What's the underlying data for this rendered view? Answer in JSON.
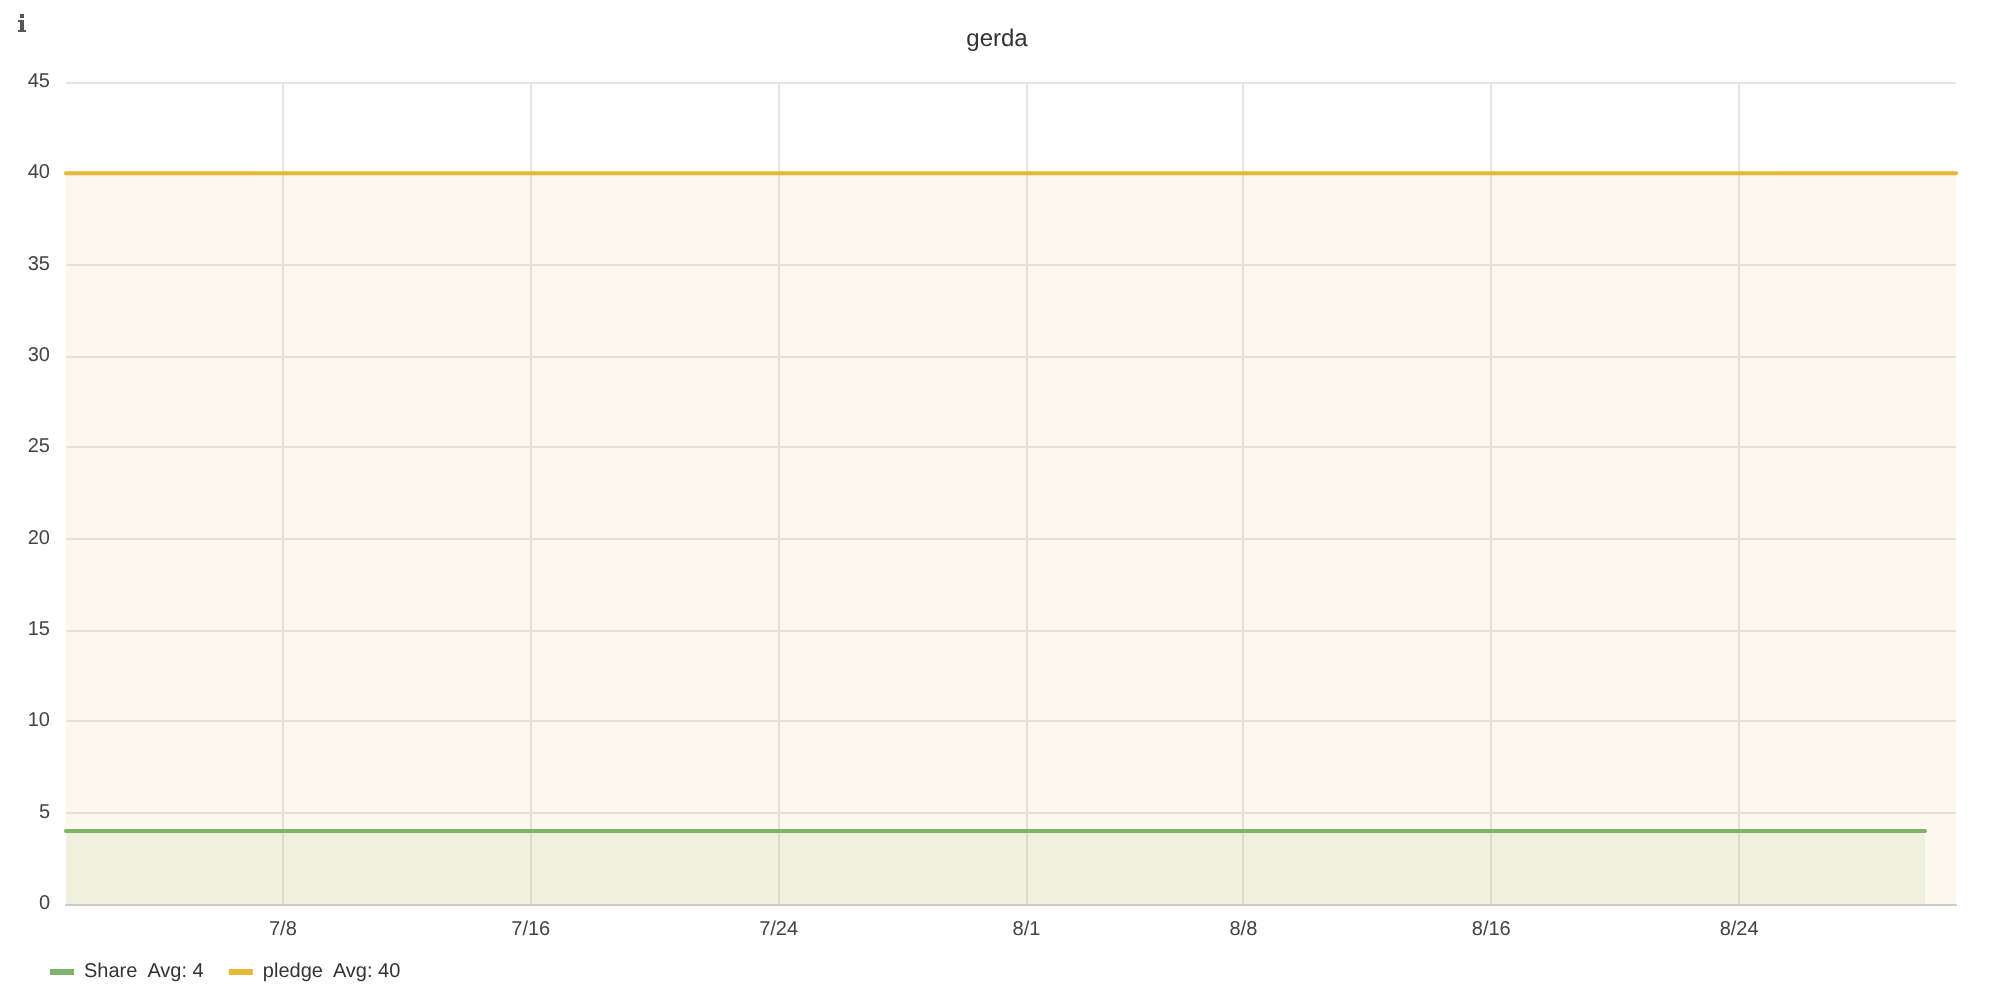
{
  "chart_data": {
    "type": "area",
    "title": "gerda",
    "xlim": [
      "--07-01",
      "--08-31"
    ],
    "xticks": [
      {
        "value": "--07-08",
        "label": "7/8"
      },
      {
        "value": "--07-16",
        "label": "7/16"
      },
      {
        "value": "--07-24",
        "label": "7/24"
      },
      {
        "value": "--08-01",
        "label": "8/1"
      },
      {
        "value": "--08-08",
        "label": "8/8"
      },
      {
        "value": "--08-16",
        "label": "8/16"
      },
      {
        "value": "--08-24",
        "label": "8/24"
      }
    ],
    "ylim": [
      0,
      45
    ],
    "yticks": [
      0,
      5,
      10,
      15,
      20,
      25,
      30,
      35,
      40,
      45
    ],
    "series": [
      {
        "name": "Share  Avg: 4",
        "color": "#7eb26d",
        "x": [
          "--07-01",
          "--08-30"
        ],
        "values": [
          4,
          4
        ]
      },
      {
        "name": "pledge  Avg: 40",
        "color": "#eab839",
        "x": [
          "--07-01",
          "--08-31"
        ],
        "values": [
          40,
          40
        ]
      }
    ],
    "grid": true,
    "legend": "bottom left",
    "marker": "none",
    "line_style": "solid"
  }
}
